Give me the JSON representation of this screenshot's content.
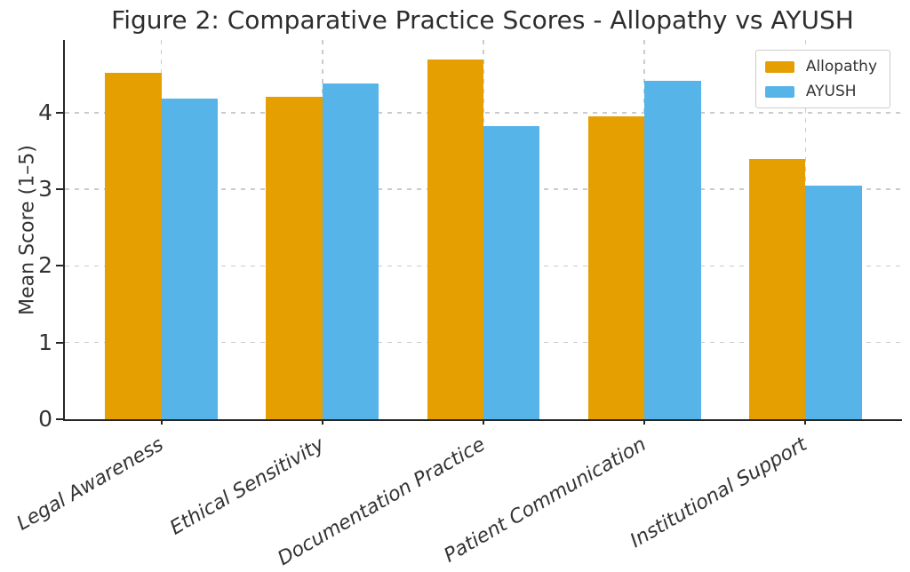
{
  "figure": {
    "background": "#ffffff"
  },
  "chart_data": {
    "type": "bar",
    "title": "Figure 2: Comparative Practice Scores - Allopathy vs AYUSH",
    "xlabel": "",
    "ylabel": "Mean Score (1–5)",
    "categories": [
      "Legal Awareness",
      "Ethical Sensitivity",
      "Documentation Practice",
      "Patient Communication",
      "Institutional Support"
    ],
    "series": [
      {
        "name": "Allopathy",
        "color": "#E69F00",
        "values": [
          4.52,
          4.21,
          4.7,
          3.95,
          3.4
        ]
      },
      {
        "name": "AYUSH",
        "color": "#56B4E9",
        "values": [
          4.18,
          4.38,
          3.82,
          4.42,
          3.05
        ]
      }
    ],
    "yticks": [
      0,
      1,
      2,
      3,
      4
    ],
    "ylim": [
      0,
      4.95
    ],
    "xlim": [
      -0.6,
      4.6
    ],
    "bar_width": 0.35,
    "grid": "dashed, horizontal and vertical",
    "legend_position": "upper right",
    "colors": {
      "axis": "#262626",
      "grid": "#cbcbcb",
      "text": "#333333",
      "title": "#2d2d2d",
      "background": "#ffffff"
    }
  }
}
